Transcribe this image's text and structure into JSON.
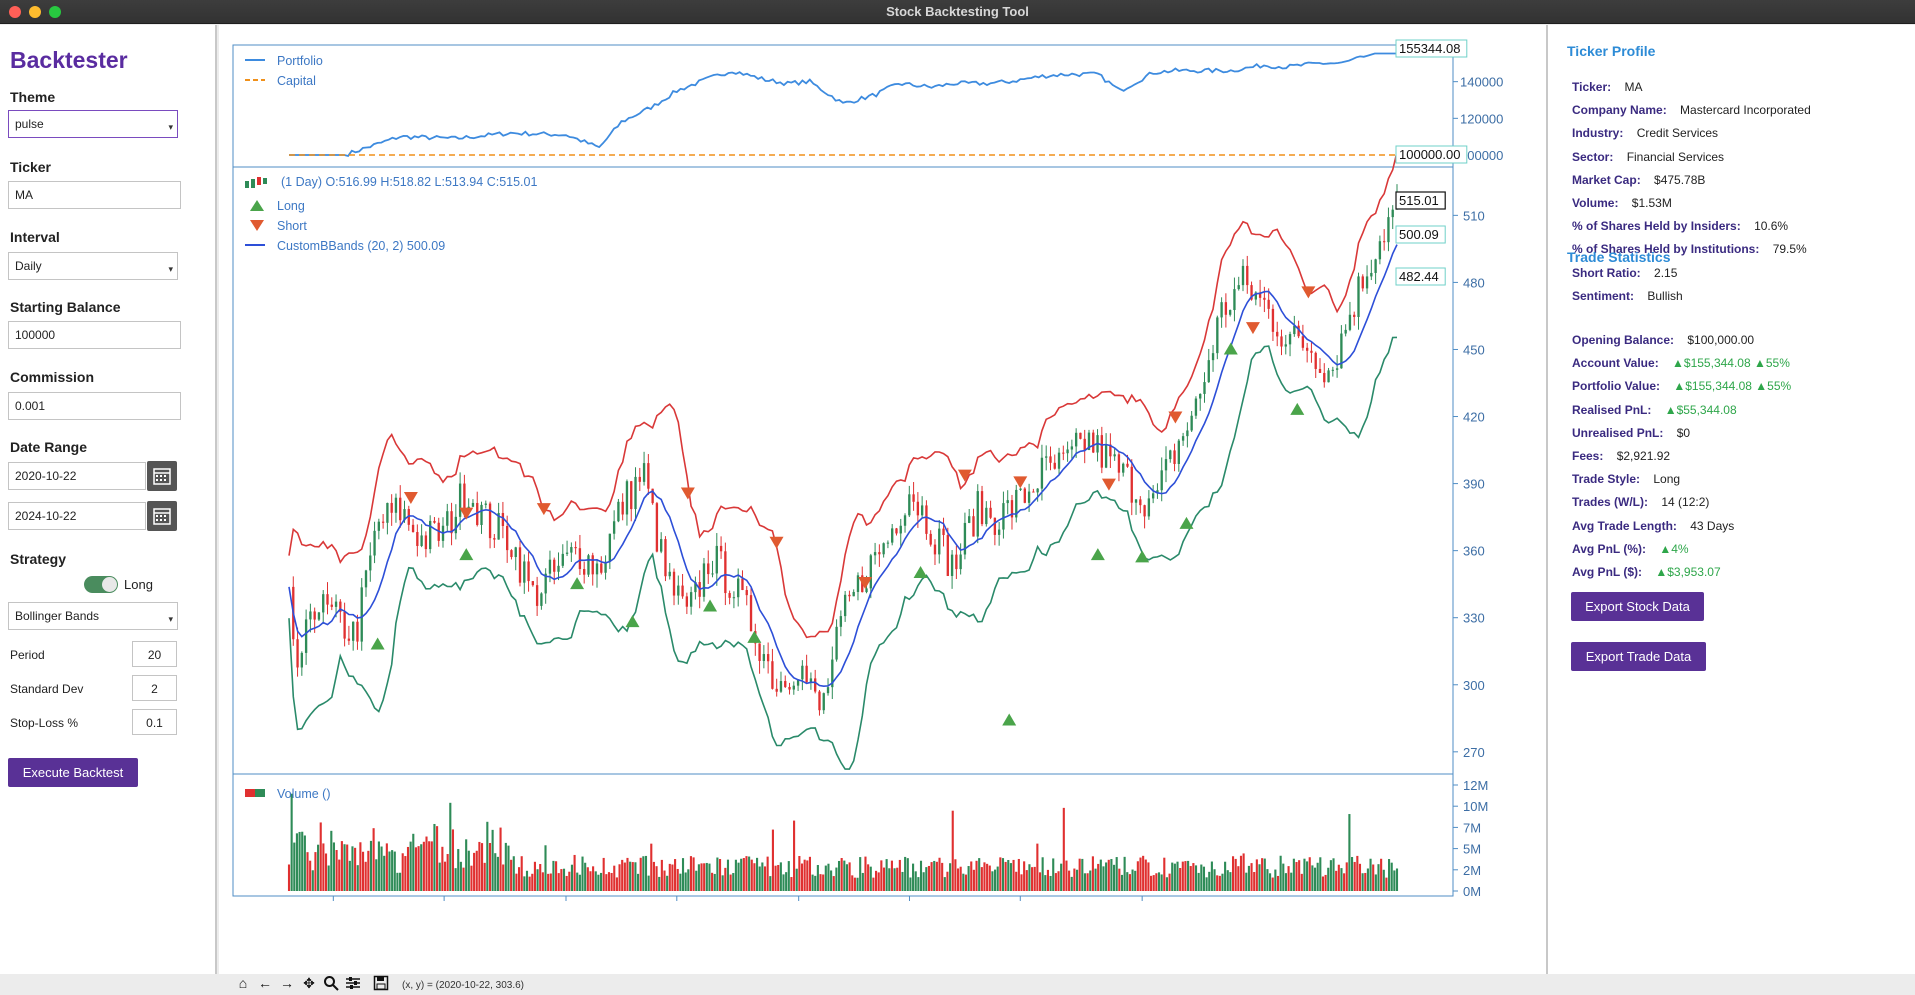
{
  "window": {
    "title": "Stock Backtesting Tool"
  },
  "sidebar": {
    "brand": "Backtester",
    "theme_label": "Theme",
    "theme_value": "pulse",
    "ticker_label": "Ticker",
    "ticker_value": "MA",
    "interval_label": "Interval",
    "interval_value": "Daily",
    "balance_label": "Starting Balance",
    "balance_value": "100000",
    "commission_label": "Commission",
    "commission_value": "0.001",
    "date_range_label": "Date Range",
    "start_date": "2020-10-22",
    "end_date": "2024-10-22",
    "strategy_label": "Strategy",
    "strategy_toggle_label": "Long",
    "strategy_value": "Bollinger Bands",
    "params": [
      {
        "label": "Period",
        "value": "20"
      },
      {
        "label": "Standard Dev",
        "value": "2"
      },
      {
        "label": "Stop-Loss %",
        "value": "0.1"
      }
    ],
    "execute_label": "Execute Backtest"
  },
  "chart_data": [
    {
      "type": "line",
      "series": [
        {
          "name": "Portfolio",
          "color": "#3d8bdf",
          "x": [
            0,
            0.05,
            0.1,
            0.15,
            0.2,
            0.25,
            0.28,
            0.3,
            0.33,
            0.35,
            0.38,
            0.4,
            0.43,
            0.45,
            0.47,
            0.5,
            0.53,
            0.55,
            0.58,
            0.6,
            0.63,
            0.65,
            0.68,
            0.7,
            0.73,
            0.75,
            0.78,
            0.8,
            0.83,
            0.85,
            0.88,
            0.9,
            0.93,
            0.95,
            0.98,
            1.0
          ],
          "y": [
            100000,
            100000,
            110000,
            109000,
            112000,
            111000,
            104000,
            118000,
            127000,
            135000,
            142000,
            146000,
            141000,
            139000,
            140000,
            128000,
            133000,
            139000,
            137000,
            139000,
            139000,
            140000,
            143000,
            144000,
            144000,
            135000,
            145000,
            146000,
            146000,
            146000,
            149000,
            148000,
            150000,
            150000,
            155344,
            155344
          ]
        },
        {
          "name": "Capital",
          "color": "#f0901a",
          "style": "dashed",
          "x": [
            0,
            1
          ],
          "y": [
            100000,
            100000
          ]
        }
      ],
      "y_ticks": [
        "100000",
        "120000",
        "140000"
      ],
      "end_labels": [
        "155344.08",
        "100000.00"
      ]
    },
    {
      "type": "candlestick",
      "legend": [
        "(1 Day) O:516.99 H:518.82 L:513.94 C:515.01",
        "Long",
        "Short",
        "CustomBBands (20, 2) 500.09"
      ],
      "y_ticks": [
        "270",
        "300",
        "330",
        "360",
        "390",
        "420",
        "450",
        "480",
        "510"
      ],
      "ylim": [
        265,
        520
      ],
      "end_labels": [
        "515.01",
        "500.09",
        "482.44"
      ],
      "close_path": [
        [
          0.0,
          335
        ],
        [
          0.01,
          300
        ],
        [
          0.02,
          338
        ],
        [
          0.04,
          330
        ],
        [
          0.06,
          322
        ],
        [
          0.08,
          372
        ],
        [
          0.1,
          378
        ],
        [
          0.12,
          365
        ],
        [
          0.14,
          368
        ],
        [
          0.16,
          388
        ],
        [
          0.18,
          372
        ],
        [
          0.2,
          365
        ],
        [
          0.22,
          340
        ],
        [
          0.24,
          350
        ],
        [
          0.26,
          360
        ],
        [
          0.28,
          352
        ],
        [
          0.3,
          380
        ],
        [
          0.32,
          395
        ],
        [
          0.34,
          348
        ],
        [
          0.36,
          330
        ],
        [
          0.38,
          358
        ],
        [
          0.4,
          345
        ],
        [
          0.42,
          325
        ],
        [
          0.44,
          300
        ],
        [
          0.46,
          310
        ],
        [
          0.48,
          287
        ],
        [
          0.5,
          330
        ],
        [
          0.52,
          350
        ],
        [
          0.54,
          365
        ],
        [
          0.56,
          388
        ],
        [
          0.58,
          370
        ],
        [
          0.6,
          352
        ],
        [
          0.62,
          378
        ],
        [
          0.64,
          375
        ],
        [
          0.66,
          382
        ],
        [
          0.68,
          395
        ],
        [
          0.7,
          398
        ],
        [
          0.72,
          410
        ],
        [
          0.74,
          400
        ],
        [
          0.76,
          390
        ],
        [
          0.78,
          380
        ],
        [
          0.8,
          405
        ],
        [
          0.82,
          425
        ],
        [
          0.84,
          465
        ],
        [
          0.86,
          480
        ],
        [
          0.88,
          470
        ],
        [
          0.9,
          455
        ],
        [
          0.92,
          452
        ],
        [
          0.94,
          440
        ],
        [
          0.96,
          470
        ],
        [
          0.98,
          495
        ],
        [
          1.0,
          515
        ]
      ],
      "long_markers": [
        [
          0.08,
          318
        ],
        [
          0.16,
          358
        ],
        [
          0.26,
          345
        ],
        [
          0.31,
          328
        ],
        [
          0.38,
          335
        ],
        [
          0.42,
          321
        ],
        [
          0.57,
          350
        ],
        [
          0.65,
          284
        ],
        [
          0.73,
          358
        ],
        [
          0.77,
          357
        ],
        [
          0.81,
          372
        ],
        [
          0.85,
          450
        ],
        [
          0.91,
          423
        ]
      ],
      "short_markers": [
        [
          0.11,
          384
        ],
        [
          0.16,
          377
        ],
        [
          0.23,
          379
        ],
        [
          0.36,
          386
        ],
        [
          0.44,
          364
        ],
        [
          0.52,
          346
        ],
        [
          0.61,
          394
        ],
        [
          0.66,
          391
        ],
        [
          0.74,
          390
        ],
        [
          0.8,
          420
        ],
        [
          0.87,
          460
        ],
        [
          0.92,
          476
        ]
      ]
    },
    {
      "type": "bar",
      "legend": "Volume ()",
      "y_ticks": [
        "0M",
        "2M",
        "5M",
        "7M",
        "10M",
        "12M"
      ],
      "ylim": [
        0,
        12
      ]
    }
  ],
  "right_panel": {
    "profile_title": "Ticker Profile",
    "profile": [
      {
        "k": "Ticker:",
        "v": "MA"
      },
      {
        "k": "Company Name:",
        "v": "Mastercard Incorporated"
      },
      {
        "k": "Industry:",
        "v": "Credit Services"
      },
      {
        "k": "Sector:",
        "v": "Financial Services"
      },
      {
        "k": "Market Cap:",
        "v": "$475.78B"
      },
      {
        "k": "Volume:",
        "v": "$1.53M"
      },
      {
        "k": "% of Shares Held by Insiders:",
        "v": "10.6%"
      },
      {
        "k": "% of Shares Held by Institutions:",
        "v": "79.5%"
      },
      {
        "k": "Short Ratio:",
        "v": "2.15"
      },
      {
        "k": "Sentiment:",
        "v": "Bullish"
      }
    ],
    "stats_title": "Trade Statistics",
    "stats": [
      {
        "k": "Opening Balance:",
        "v": "$100,000.00",
        "up": false
      },
      {
        "k": "Account Value:",
        "v": "▲$155,344.08 ▲55%",
        "up": true
      },
      {
        "k": "Portfolio Value:",
        "v": "▲$155,344.08 ▲55%",
        "up": true
      },
      {
        "k": "Realised PnL:",
        "v": "▲$55,344.08",
        "up": true
      },
      {
        "k": "Unrealised PnL:",
        "v": "$0",
        "up": false
      },
      {
        "k": "Fees:",
        "v": "$2,921.92",
        "up": false
      },
      {
        "k": "Trade Style:",
        "v": "Long",
        "up": false
      },
      {
        "k": "Trades (W/L):",
        "v": "14 (12:2)",
        "up": false
      },
      {
        "k": "Avg Trade Length:",
        "v": "43 Days",
        "up": false
      },
      {
        "k": "Avg PnL (%):",
        "v": "▲4%",
        "up": true
      },
      {
        "k": "Avg PnL ($):",
        "v": "▲$3,953.07",
        "up": true
      }
    ],
    "export_stock": "Export Stock Data",
    "export_trade": "Export Trade Data"
  },
  "toolbar": {
    "coords": "(x, y) = (2020-10-22, 303.6)",
    "icons": [
      "home-icon",
      "back-arrow-icon",
      "forward-arrow-icon",
      "pan-icon",
      "zoom-icon",
      "configure-icon",
      "save-icon"
    ]
  },
  "colors": {
    "accent": "#593196",
    "up": "#2e8b57",
    "down": "#e03030",
    "bb_upper": "#d93838",
    "bb_mid": "#2d4fd8",
    "bb_lower": "#2a8a6a",
    "portfolio": "#3d8bdf",
    "capital": "#f0901a"
  }
}
